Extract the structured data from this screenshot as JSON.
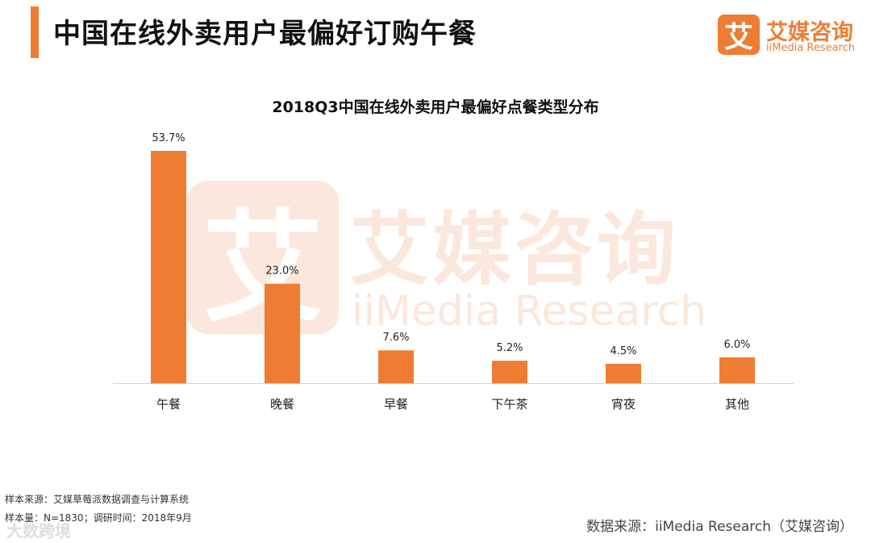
{
  "header": {
    "title": "中国在线外卖用户最偏好订购午餐"
  },
  "logo": {
    "glyph": "艾",
    "name": "艾媒咨询",
    "sub": "iiMedia Research"
  },
  "watermark": {
    "glyph": "艾",
    "name": "艾媒咨询",
    "sub": "iiMedia Research"
  },
  "chart_data": {
    "type": "bar",
    "title": "2018Q3中国在线外卖用户最偏好点餐类型分布",
    "categories": [
      "午餐",
      "晚餐",
      "早餐",
      "下午茶",
      "宵夜",
      "其他"
    ],
    "values": [
      53.7,
      23.0,
      7.6,
      5.2,
      4.5,
      6.0
    ],
    "value_labels": [
      "53.7%",
      "23.0%",
      "7.6%",
      "5.2%",
      "4.5%",
      "6.0%"
    ],
    "xlabel": "",
    "ylabel": "",
    "ylim": [
      0,
      53.7
    ],
    "grid": false,
    "legend": "none",
    "bar_color": "#ee7d33"
  },
  "footer": {
    "sample_source": "样本来源：艾媒草莓派数据调查与计算系统",
    "sample_size": "样本量：N=1830；调研时间：2018年9月",
    "data_source": "数据来源：iiMedia Research（艾媒咨询）",
    "stamp": "大数跨境"
  },
  "colors": {
    "accent": "#ee7d33",
    "watermark": "#fbe7dc"
  }
}
